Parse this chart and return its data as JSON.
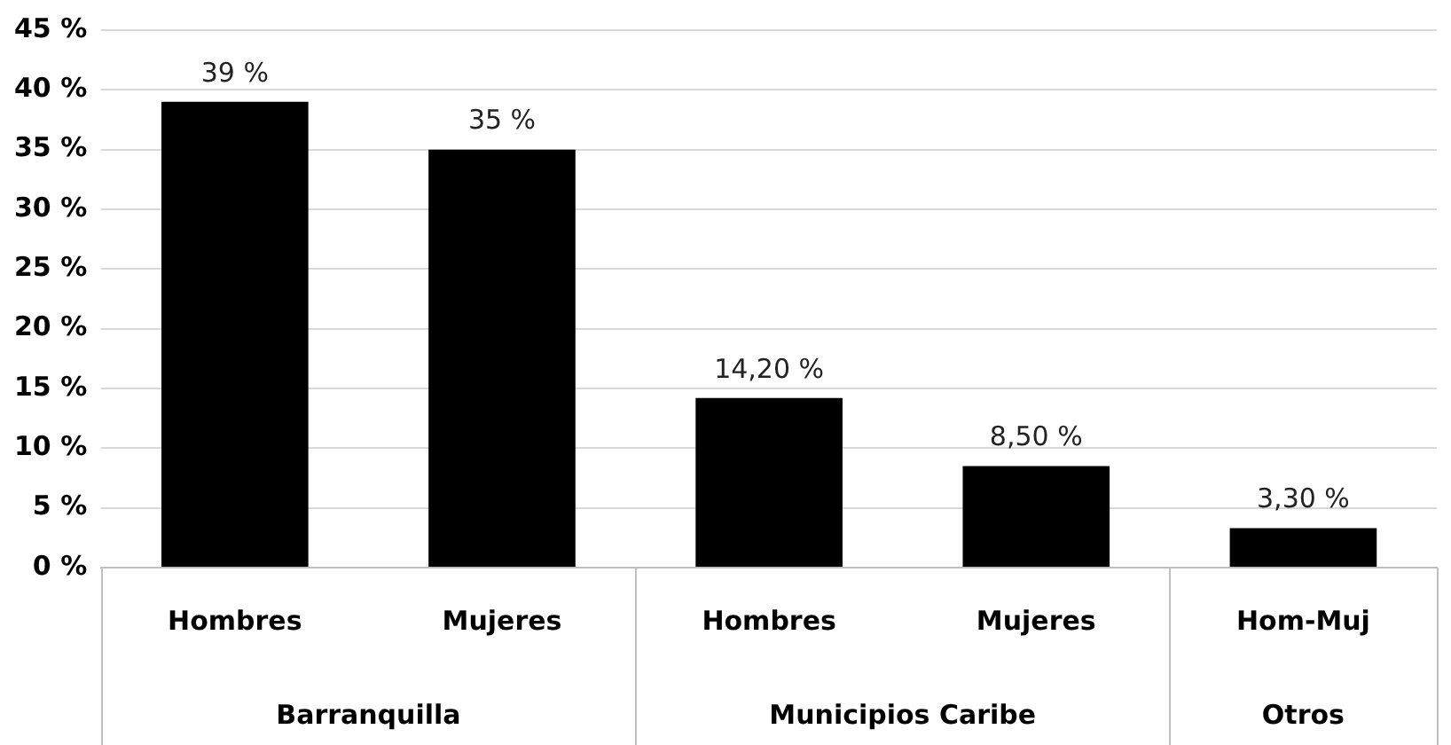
{
  "chart_data": {
    "type": "bar",
    "categories": [
      "Hombres",
      "Mujeres",
      "Hombres",
      "Mujeres",
      "Hom-Muj"
    ],
    "values": [
      39,
      35,
      14.2,
      8.5,
      3.3
    ],
    "value_labels": [
      "39 %",
      "35 %",
      "14,20 %",
      "8,50 %",
      "3,30 %"
    ],
    "color": "#000000",
    "ylim": [
      0,
      45
    ],
    "yticks": [
      {
        "value": 0,
        "label": "0 %"
      },
      {
        "value": 5,
        "label": "5 %"
      },
      {
        "value": 10,
        "label": "10 %"
      },
      {
        "value": 15,
        "label": "15 %"
      },
      {
        "value": 20,
        "label": "20 %"
      },
      {
        "value": 25,
        "label": "25 %"
      },
      {
        "value": 30,
        "label": "30 %"
      },
      {
        "value": 35,
        "label": "35 %"
      },
      {
        "value": 40,
        "label": "40 %"
      },
      {
        "value": 45,
        "label": "45 %"
      }
    ],
    "grid": "y",
    "annotations": [
      "Barranquilla",
      "Municipios Caribe",
      "Otros"
    ]
  }
}
